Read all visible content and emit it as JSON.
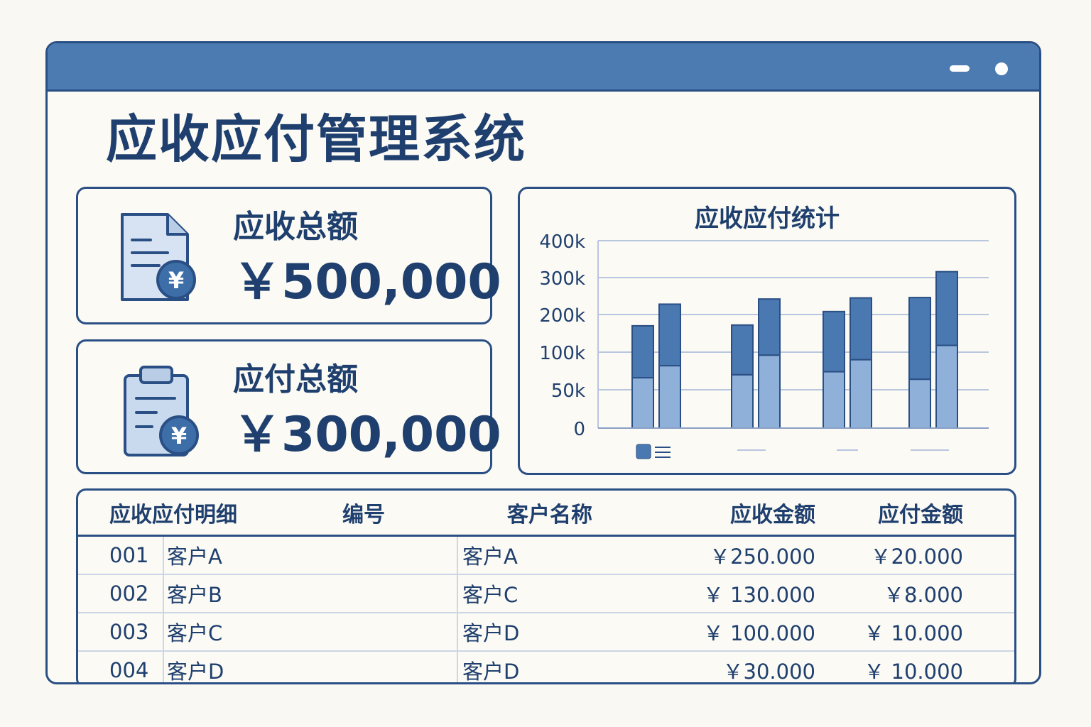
{
  "window": {
    "controls": [
      "minimize",
      "close"
    ]
  },
  "app_title": "应收应付管理系统",
  "summary": {
    "receivable": {
      "label": "应收总额",
      "value": "￥500,000",
      "icon": "invoice-yen-icon"
    },
    "payable": {
      "label": "应付总额",
      "value": "￥300,000",
      "icon": "clipboard-yen-icon"
    }
  },
  "chart": {
    "title": "应收应付统计"
  },
  "chart_data": {
    "type": "bar",
    "stacked": true,
    "title": "应收应付统计",
    "y_tick_labels": [
      "0",
      "50k",
      "100k",
      "200k",
      "300k",
      "400k"
    ],
    "y_tick_values": [
      0,
      50000,
      100000,
      200000,
      300000,
      400000
    ],
    "ylim": [
      0,
      400000
    ],
    "grid": true,
    "legend": {
      "placement": "bottom-left",
      "entries": [
        ""
      ]
    },
    "groups": [
      {
        "bars": [
          {
            "lower": 66000,
            "upper": 170000
          },
          {
            "lower": 82000,
            "upper": 228000
          }
        ]
      },
      {
        "bars": [
          {
            "lower": 70000,
            "upper": 172000
          },
          {
            "lower": 96000,
            "upper": 242000
          }
        ]
      },
      {
        "bars": [
          {
            "lower": 74000,
            "upper": 208000
          },
          {
            "lower": 90000,
            "upper": 245000
          }
        ]
      },
      {
        "bars": [
          {
            "lower": 64000,
            "upper": 246000
          },
          {
            "lower": 118000,
            "upper": 316000
          }
        ]
      }
    ],
    "colors": {
      "lower": "#8fb1d9",
      "upper": "#4a78b0",
      "outline": "#2a4f85"
    }
  },
  "table": {
    "headers": [
      "应收应付明细",
      "编号",
      "客户名称",
      "应收金额",
      "应付金额"
    ],
    "rows": [
      {
        "id": "001",
        "customer1": "客户A",
        "customer2": "客户A",
        "receivable": "￥250.000",
        "payable": "￥20.000"
      },
      {
        "id": "002",
        "customer1": "客户B",
        "customer2": "客户C",
        "receivable": "￥ 130.000",
        "payable": "￥8.000"
      },
      {
        "id": "003",
        "customer1": "客户C",
        "customer2": "客户D",
        "receivable": "￥ 100.000",
        "payable": "￥ 10.000"
      },
      {
        "id": "004",
        "customer1": "客户D",
        "customer2": "客户D",
        "receivable": "￥30.000",
        "payable": "￥ 10.000"
      }
    ]
  },
  "colors": {
    "accent": "#4b7bb0",
    "border": "#2a4f85",
    "text": "#1f3f6e",
    "background": "#faf8f2"
  }
}
